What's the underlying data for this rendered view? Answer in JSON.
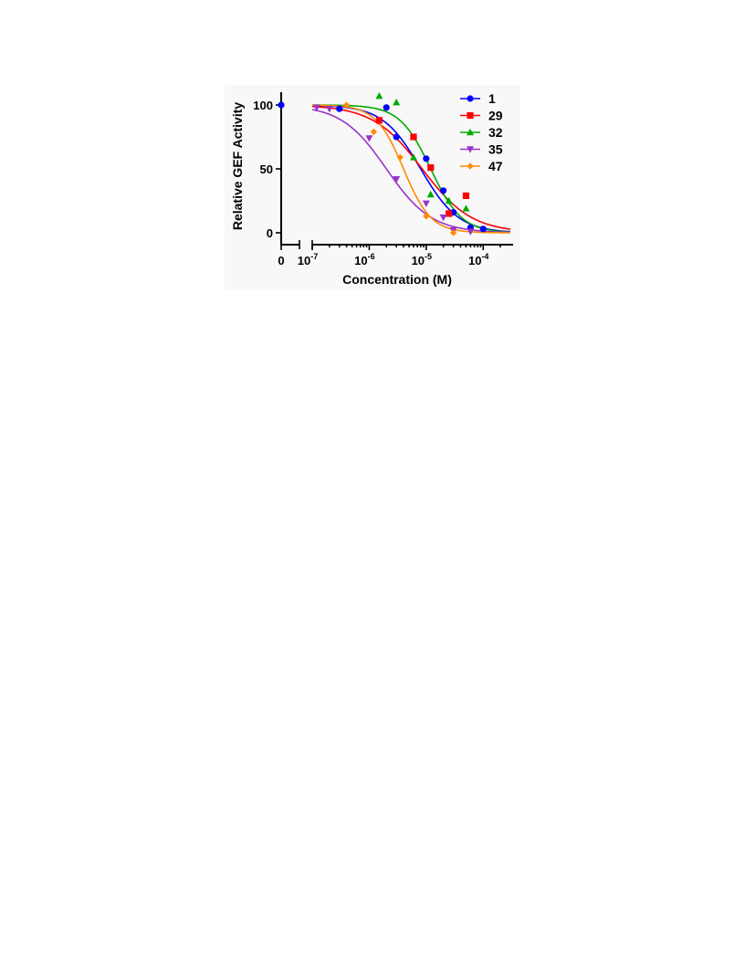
{
  "chart_data": {
    "type": "scatter",
    "xlabel": "Concentration (M)",
    "ylabel": "Relative GEF Activity",
    "x_scale": "log",
    "xlim": [
      1e-07,
      0.0003
    ],
    "ylim": [
      -10,
      110
    ],
    "y_ticks": [
      0,
      50,
      100
    ],
    "x_ticks": [
      {
        "value": 1e-07,
        "base": "10",
        "exp": "-7"
      },
      {
        "value": 1e-06,
        "base": "10",
        "exp": "-6"
      },
      {
        "value": 1e-05,
        "base": "10",
        "exp": "-5"
      },
      {
        "value": 0.0001,
        "base": "10",
        "exp": "-4"
      }
    ],
    "zero_tick_label": "0",
    "legend_position": "top-right",
    "grid": false,
    "series": [
      {
        "name": "1",
        "color": "#0000ff",
        "marker": "circle",
        "ic50": 8e-06,
        "hill": 1.3,
        "points": [
          [
            0,
            100
          ],
          [
            3e-07,
            97
          ],
          [
            2e-06,
            98
          ],
          [
            3e-06,
            75
          ],
          [
            1e-05,
            58
          ],
          [
            2e-05,
            33
          ],
          [
            3e-05,
            16
          ],
          [
            6e-05,
            4
          ],
          [
            0.0001,
            3
          ]
        ]
      },
      {
        "name": "29",
        "color": "#ff0000",
        "marker": "square",
        "ic50": 8.5e-06,
        "hill": 1.0,
        "points": [
          [
            1.5e-06,
            88
          ],
          [
            6e-06,
            75
          ],
          [
            1.2e-05,
            51
          ],
          [
            2.5e-05,
            15
          ],
          [
            5e-05,
            29
          ]
        ]
      },
      {
        "name": "32",
        "color": "#00aa00",
        "marker": "triangle-up",
        "ic50": 1.2e-05,
        "hill": 1.6,
        "points": [
          [
            1.5e-06,
            107
          ],
          [
            3e-06,
            102
          ],
          [
            6e-06,
            59
          ],
          [
            1.2e-05,
            30
          ],
          [
            2.5e-05,
            25
          ],
          [
            5e-05,
            19
          ]
        ]
      },
      {
        "name": "35",
        "color": "#9933cc",
        "marker": "triangle-down",
        "ic50": 2e-06,
        "hill": 1.1,
        "points": [
          [
            1.2e-07,
            98
          ],
          [
            2e-07,
            97
          ],
          [
            1e-06,
            74
          ],
          [
            3e-06,
            42
          ],
          [
            1e-05,
            23
          ],
          [
            2e-05,
            12
          ],
          [
            3e-05,
            2
          ],
          [
            6e-05,
            1
          ]
        ]
      },
      {
        "name": "47",
        "color": "#ff8800",
        "marker": "diamond",
        "ic50": 4e-06,
        "hill": 1.8,
        "points": [
          [
            4e-07,
            100
          ],
          [
            1.2e-06,
            79
          ],
          [
            3.5e-06,
            59
          ],
          [
            1e-05,
            13
          ],
          [
            3e-05,
            0
          ]
        ]
      }
    ]
  }
}
